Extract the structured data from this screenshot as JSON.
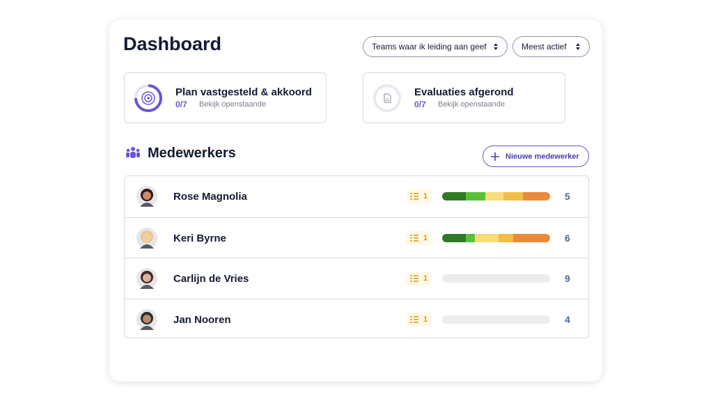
{
  "header": {
    "title": "Dashboard",
    "filters": [
      "Teams waar ik leiding aan geef",
      "Meest actief"
    ]
  },
  "cards": [
    {
      "title": "Plan vastgesteld  & akkoord",
      "count": "0/7",
      "link": "Bekijk openstaande"
    },
    {
      "title": "Evaluaties afgerond",
      "count": "0/7",
      "link": "Bekijk openstaande"
    }
  ],
  "section": {
    "title": "Medewerkers",
    "button": "Nieuwe medewerker"
  },
  "segment_colors": [
    "#2f7a24",
    "#5cbf3a",
    "#f6dd7a",
    "#f2bd45",
    "#ea8a3a"
  ],
  "employees": [
    {
      "name": "Rose Magnolia",
      "tasks": 1,
      "total": 5,
      "segments": [
        1.1,
        0.9,
        0.85,
        0.9,
        1.25
      ]
    },
    {
      "name": "Keri Byrne",
      "tasks": 1,
      "total": 6,
      "segments": [
        1.3,
        0.5,
        1.35,
        0.8,
        2.05
      ]
    },
    {
      "name": "Carlijn de Vries",
      "tasks": 1,
      "total": 9,
      "segments": []
    },
    {
      "name": "Jan Nooren",
      "tasks": 1,
      "total": 4,
      "segments": []
    }
  ]
}
